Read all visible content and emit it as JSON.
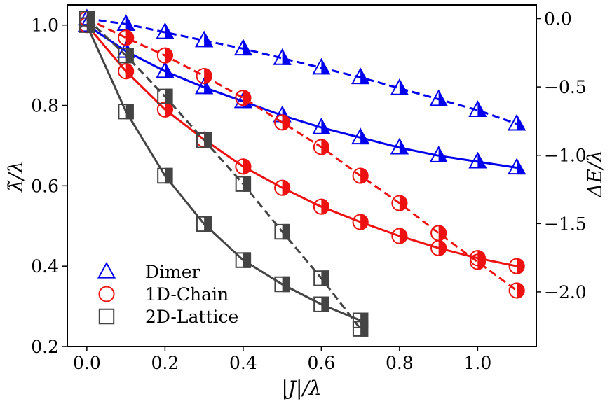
{
  "chart_data": {
    "type": "line",
    "xlabel": "|J|/λ",
    "ylabel_left": "λ̃/λ",
    "ylabel_right": "ΔE/λ",
    "xlim": [
      -0.05,
      1.15
    ],
    "ylim_left": [
      0.2,
      1.05
    ],
    "ylim_right": [
      -2.4,
      0.1
    ],
    "xticks": [
      0.0,
      0.2,
      0.4,
      0.6,
      0.8,
      1.0
    ],
    "xtick_labels": [
      "0.0",
      "0.2",
      "0.4",
      "0.6",
      "0.8",
      "1.0"
    ],
    "yticks_left": [
      0.2,
      0.4,
      0.6,
      0.8,
      1.0
    ],
    "ytick_labels_left": [
      "0.2",
      "0.4",
      "0.6",
      "0.8",
      "1.0"
    ],
    "yticks_right": [
      0.0,
      -0.5,
      -1.0,
      -1.5,
      -2.0
    ],
    "ytick_labels_right": [
      "0.0",
      "−0.5",
      "−1.0",
      "−1.5",
      "−2.0"
    ],
    "grid": false,
    "legend_position": "lower-left",
    "series": [
      {
        "name": "Dimer",
        "marker": "triangle",
        "color": "#0000ee",
        "x": [
          0.0,
          0.1,
          0.2,
          0.3,
          0.4,
          0.5,
          0.6,
          0.7,
          0.8,
          0.9,
          1.0,
          1.1
        ],
        "lambda_ratio": [
          1.0,
          0.935,
          0.885,
          0.845,
          0.81,
          0.775,
          0.745,
          0.72,
          0.695,
          0.675,
          0.66,
          0.645
        ],
        "energy_shift": [
          0.0,
          -0.04,
          -0.1,
          -0.16,
          -0.22,
          -0.29,
          -0.36,
          -0.43,
          -0.51,
          -0.59,
          -0.67,
          -0.77
        ]
      },
      {
        "name": "1D-Chain",
        "marker": "circle",
        "color": "#ee1111",
        "x": [
          0.0,
          0.1,
          0.2,
          0.3,
          0.4,
          0.5,
          0.6,
          0.7,
          0.8,
          0.9,
          1.0,
          1.1
        ],
        "lambda_ratio": [
          1.0,
          0.885,
          0.79,
          0.715,
          0.648,
          0.595,
          0.548,
          0.51,
          0.475,
          0.445,
          0.42,
          0.4
        ],
        "energy_shift": [
          0.0,
          -0.14,
          -0.27,
          -0.42,
          -0.58,
          -0.76,
          -0.94,
          -1.15,
          -1.35,
          -1.57,
          -1.78,
          -1.99
        ]
      },
      {
        "name": "2D-Lattice",
        "marker": "square",
        "color": "#444444",
        "x": [
          0.0,
          0.1,
          0.2,
          0.3,
          0.4,
          0.5,
          0.6,
          0.7
        ],
        "lambda_ratio": [
          1.0,
          0.785,
          0.625,
          0.505,
          0.415,
          0.355,
          0.305,
          0.265
        ],
        "energy_shift": [
          0.0,
          -0.27,
          -0.57,
          -0.89,
          -1.21,
          -1.56,
          -1.9,
          -2.27
        ]
      }
    ]
  }
}
